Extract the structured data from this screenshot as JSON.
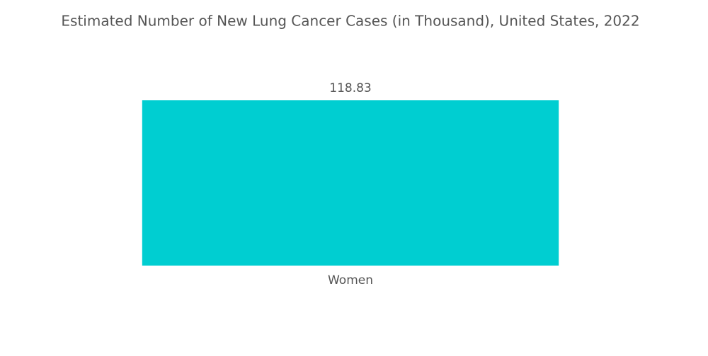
{
  "chart_data": {
    "type": "bar",
    "title": "Estimated Number of New Lung Cancer Cases (in Thousand), United States, 2022",
    "categories": [
      "Women"
    ],
    "values": [
      118.83
    ],
    "color": "#00ced1"
  }
}
